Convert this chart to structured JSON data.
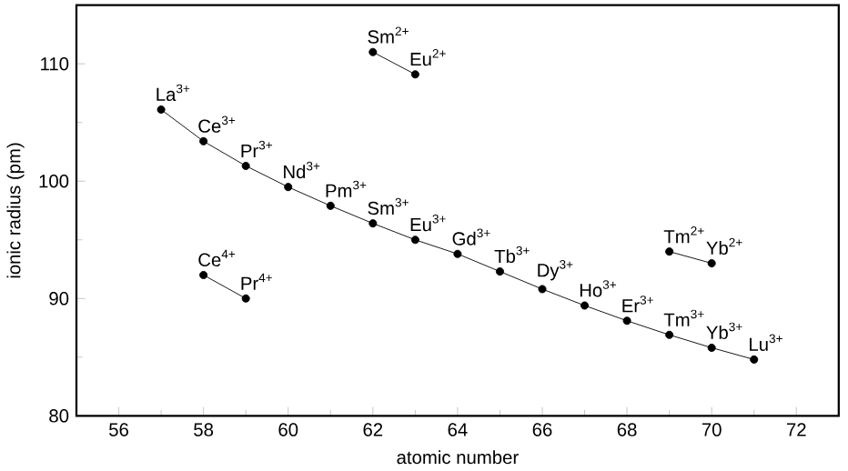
{
  "chart_data": {
    "type": "line",
    "xlabel": "atomic number",
    "ylabel": "ionic radius (pm)",
    "xlim": [
      55,
      73
    ],
    "ylim": [
      80,
      115
    ],
    "xticks": [
      56,
      58,
      60,
      62,
      64,
      66,
      68,
      70,
      72
    ],
    "yticks": [
      80,
      90,
      100,
      110
    ],
    "marker": "circle",
    "line_style": "solid",
    "series": [
      {
        "color": "#000000",
        "x": [
          57,
          58,
          59,
          60,
          61,
          62,
          63,
          64,
          65,
          66,
          67,
          68,
          69,
          70,
          71
        ],
        "values": [
          106.1,
          103.4,
          101.3,
          99.5,
          97.9,
          96.4,
          95.0,
          93.8,
          92.3,
          90.8,
          89.4,
          88.1,
          86.9,
          85.8,
          84.8
        ]
      },
      {
        "color": "#000000",
        "x": [
          62,
          63
        ],
        "values": [
          111.0,
          109.1
        ]
      },
      {
        "color": "#000000",
        "x": [
          69,
          70
        ],
        "values": [
          94.0,
          93.0
        ]
      },
      {
        "color": "#000000",
        "x": [
          58,
          59
        ],
        "values": [
          92.0,
          90.0
        ]
      }
    ],
    "annotations": [
      {
        "text": "La$^{3+}$",
        "x": 57,
        "y": 106.1
      },
      {
        "text": "Ce$^{3+}$",
        "x": 58,
        "y": 103.4
      },
      {
        "text": "Pr$^{3+}$",
        "x": 59,
        "y": 101.3
      },
      {
        "text": "Nd$^{3+}$",
        "x": 60,
        "y": 99.5
      },
      {
        "text": "Pm$^{3+}$",
        "x": 61,
        "y": 97.9
      },
      {
        "text": "Sm$^{3+}$",
        "x": 62,
        "y": 96.4
      },
      {
        "text": "Eu$^{3+}$",
        "x": 63,
        "y": 95.0
      },
      {
        "text": "Gd$^{3+}$",
        "x": 64,
        "y": 93.8
      },
      {
        "text": "Tb$^{3+}$",
        "x": 65,
        "y": 92.3
      },
      {
        "text": "Dy$^{3+}$",
        "x": 66,
        "y": 90.8
      },
      {
        "text": "Ho$^{3+}$",
        "x": 67,
        "y": 89.4
      },
      {
        "text": "Er$^{3+}$",
        "x": 68,
        "y": 88.1
      },
      {
        "text": "Tm$^{3+}$",
        "x": 69,
        "y": 86.9
      },
      {
        "text": "Yb$^{3+}$",
        "x": 70,
        "y": 85.8
      },
      {
        "text": "Lu$^{3+}$",
        "x": 71,
        "y": 84.8
      },
      {
        "text": "Sm$^{2+}$",
        "x": 62,
        "y": 111.0
      },
      {
        "text": "Eu$^{2+}$",
        "x": 63,
        "y": 109.1
      },
      {
        "text": "Tm$^{2+}$",
        "x": 69,
        "y": 94.0
      },
      {
        "text": "Yb$^{2+}$",
        "x": 70,
        "y": 93.0
      },
      {
        "text": "Ce$^{4+}$",
        "x": 58,
        "y": 92.0
      },
      {
        "text": "Pr$^{4+}$",
        "x": 59,
        "y": 90.0
      }
    ]
  }
}
